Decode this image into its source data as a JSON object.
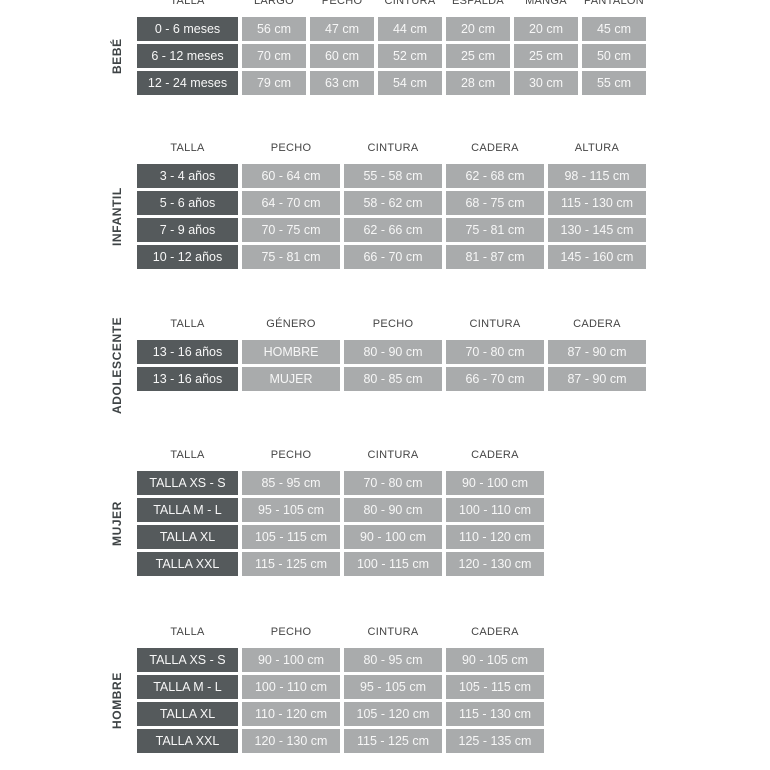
{
  "page": {
    "type": "clothing-size-chart",
    "background": "#ffffff"
  },
  "colors": {
    "page_bg": "#ffffff",
    "dark_cell": "#555a5c",
    "light_cell": "#a9abac",
    "cell_text": "#f7f7f7",
    "header_text": "#454545",
    "group_label_text": "#3e4345"
  },
  "tables": [
    {
      "group_label": "BEBÉ",
      "columns": [
        "TALLA",
        "LARGO",
        "PECHO",
        "CINTURA",
        "ESPALDA",
        "MANGA",
        "PANTALÓN"
      ],
      "rows": [
        [
          "0 - 6 meses",
          "56 cm",
          "47 cm",
          "44 cm",
          "20 cm",
          "20 cm",
          "45 cm"
        ],
        [
          "6 - 12 meses",
          "70 cm",
          "60 cm",
          "52 cm",
          "25 cm",
          "25 cm",
          "50 cm"
        ],
        [
          "12 - 24 meses",
          "79 cm",
          "63 cm",
          "54 cm",
          "28 cm",
          "30 cm",
          "55 cm"
        ]
      ]
    },
    {
      "group_label": "INFANTIL",
      "columns": [
        "TALLA",
        "PECHO",
        "CINTURA",
        "CADERA",
        "ALTURA"
      ],
      "rows": [
        [
          "3 - 4 años",
          "60 - 64 cm",
          "55 - 58 cm",
          "62 - 68 cm",
          "98 - 115 cm"
        ],
        [
          "5 - 6 años",
          "64 - 70 cm",
          "58 - 62 cm",
          "68 - 75 cm",
          "115 - 130 cm"
        ],
        [
          "7 - 9 años",
          "70 - 75 cm",
          "62 - 66 cm",
          "75 - 81 cm",
          "130 - 145 cm"
        ],
        [
          "10 - 12 años",
          "75 - 81 cm",
          "66 - 70 cm",
          "81 - 87 cm",
          "145 - 160 cm"
        ]
      ]
    },
    {
      "group_label": "ADOLESCENTE",
      "columns": [
        "TALLA",
        "GÉNERO",
        "PECHO",
        "CINTURA",
        "CADERA"
      ],
      "rows": [
        [
          "13 - 16 años",
          "HOMBRE",
          "80 - 90 cm",
          "70 - 80 cm",
          "87 - 90 cm"
        ],
        [
          "13 - 16 años",
          "MUJER",
          "80 - 85 cm",
          "66 - 70 cm",
          "87 - 90 cm"
        ]
      ]
    },
    {
      "group_label": "MUJER",
      "columns": [
        "TALLA",
        "PECHO",
        "CINTURA",
        "CADERA"
      ],
      "rows": [
        [
          "TALLA XS - S",
          "85 - 95 cm",
          "70 - 80 cm",
          "90 - 100 cm"
        ],
        [
          "TALLA M - L",
          "95 - 105 cm",
          "80 - 90 cm",
          "100 - 110 cm"
        ],
        [
          "TALLA XL",
          "105 - 115 cm",
          "90 - 100 cm",
          "110 - 120 cm"
        ],
        [
          "TALLA XXL",
          "115 - 125 cm",
          "100 - 115 cm",
          "120 - 130 cm"
        ]
      ]
    },
    {
      "group_label": "HOMBRE",
      "columns": [
        "TALLA",
        "PECHO",
        "CINTURA",
        "CADERA"
      ],
      "rows": [
        [
          "TALLA XS - S",
          "90 - 100 cm",
          "80 - 95 cm",
          "90 - 105 cm"
        ],
        [
          "TALLA M - L",
          "100 - 110 cm",
          "95 - 105 cm",
          "105 - 115 cm"
        ],
        [
          "TALLA XL",
          "110 - 120 cm",
          "105 - 120 cm",
          "115 - 130 cm"
        ],
        [
          "TALLA XXL",
          "120 - 130 cm",
          "115 - 125 cm",
          "125 - 135 cm"
        ]
      ]
    }
  ]
}
